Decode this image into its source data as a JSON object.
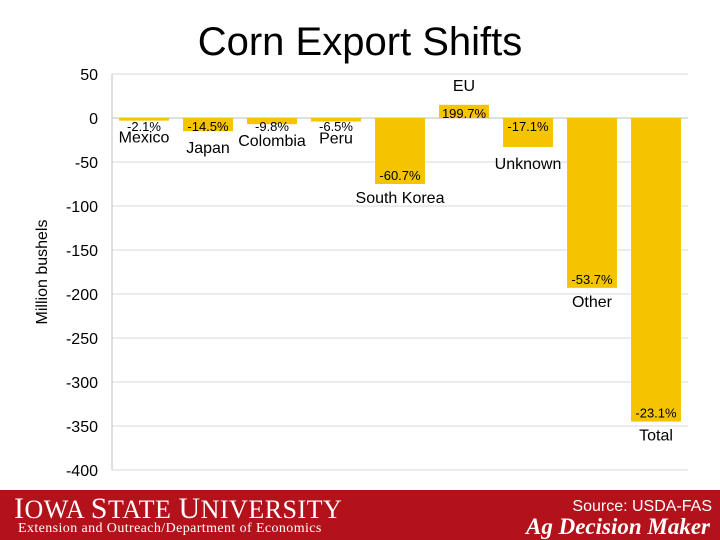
{
  "chart_data": {
    "type": "bar",
    "title": "Corn Export Shifts",
    "ylabel": "Million bushels",
    "xlabel": "",
    "ylim": [
      -400,
      50
    ],
    "yticks": [
      50,
      0,
      -50,
      -100,
      -150,
      -200,
      -250,
      -300,
      -350,
      -400
    ],
    "grid": true,
    "bar_color": "#f5c400",
    "categories": [
      {
        "label": "Mexico",
        "value": -3,
        "pct": "-2.1%"
      },
      {
        "label": "Japan",
        "value": -15,
        "pct": "-14.5%"
      },
      {
        "label": "Colombia",
        "value": -7,
        "pct": "-9.8%"
      },
      {
        "label": "Peru",
        "value": -4,
        "pct": "-6.5%"
      },
      {
        "label": "South Korea",
        "value": -75,
        "pct": "-60.7%"
      },
      {
        "label": "EU",
        "value": 15,
        "pct": "199.7%"
      },
      {
        "label": "Unknown",
        "value": -33,
        "pct": "-17.1%"
      },
      {
        "label": "Other",
        "value": -193,
        "pct": "-53.7%"
      },
      {
        "label": "Total",
        "value": -345,
        "pct": "-23.1%"
      }
    ]
  },
  "footer": {
    "university_first": "I",
    "university_rest_1": "OWA ",
    "university_second": "S",
    "university_rest_2": "TATE ",
    "university_third": "U",
    "university_rest_3": "NIVERSITY",
    "department": "Extension and Outreach/Department of Economics",
    "source": "Source: USDA-FAS",
    "brand": "Ag Decision Maker"
  }
}
